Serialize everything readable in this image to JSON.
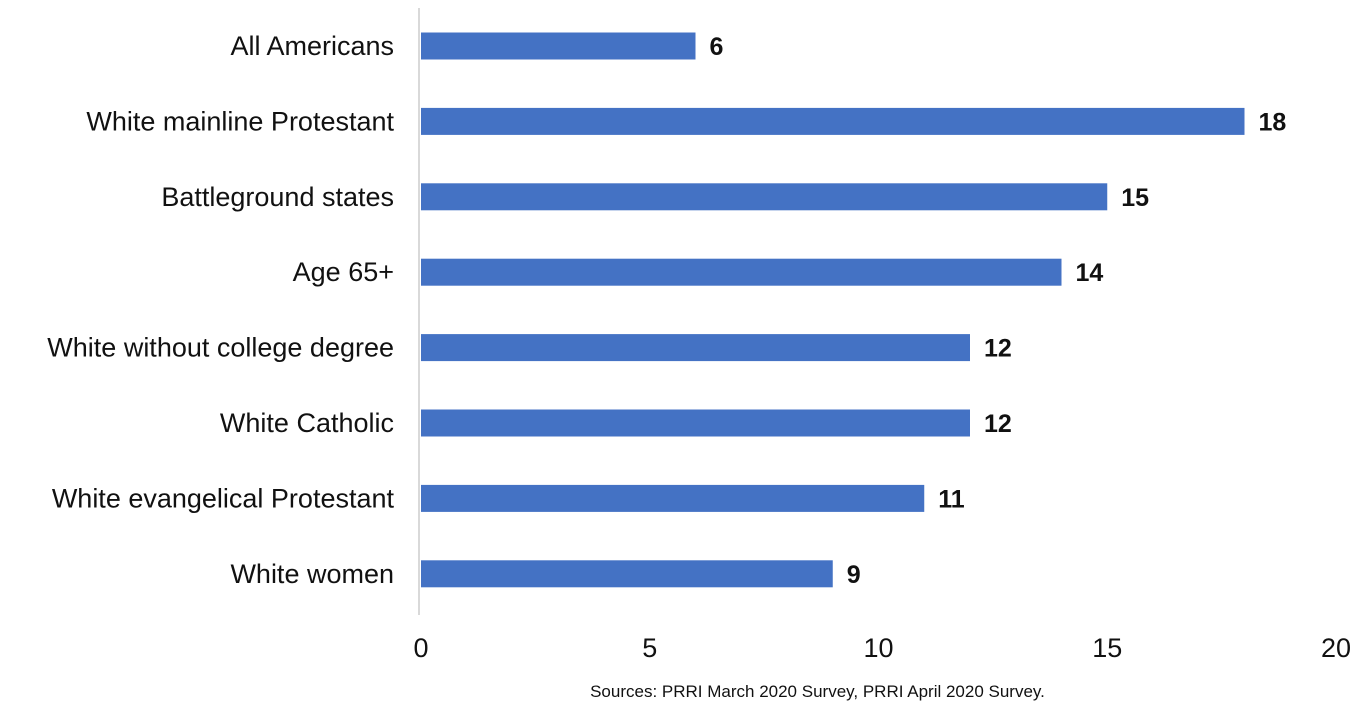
{
  "chart_data": {
    "type": "bar",
    "orientation": "horizontal",
    "categories": [
      "All Americans",
      "White mainline Protestant",
      "Battleground states",
      "Age 65+",
      "White without college degree",
      "White Catholic",
      "White evangelical Protestant",
      "White women"
    ],
    "values": [
      6,
      18,
      15,
      14,
      12,
      12,
      11,
      9
    ],
    "data_labels": [
      "6",
      "18",
      "15",
      "14",
      "12",
      "12",
      "11",
      "9"
    ],
    "xlim": [
      0,
      20
    ],
    "x_ticks": [
      0,
      5,
      10,
      15,
      20
    ],
    "x_tick_labels": [
      "0",
      "5",
      "10",
      "15",
      "20"
    ],
    "title": "",
    "xlabel": "",
    "ylabel": "",
    "grid": false,
    "legend": "none",
    "bar_color": "#4472C4",
    "axis_color": "#d9d9d9",
    "text_color": "#111111"
  },
  "source": "Sources: PRRI March 2020 Survey, PRRI April 2020 Survey."
}
